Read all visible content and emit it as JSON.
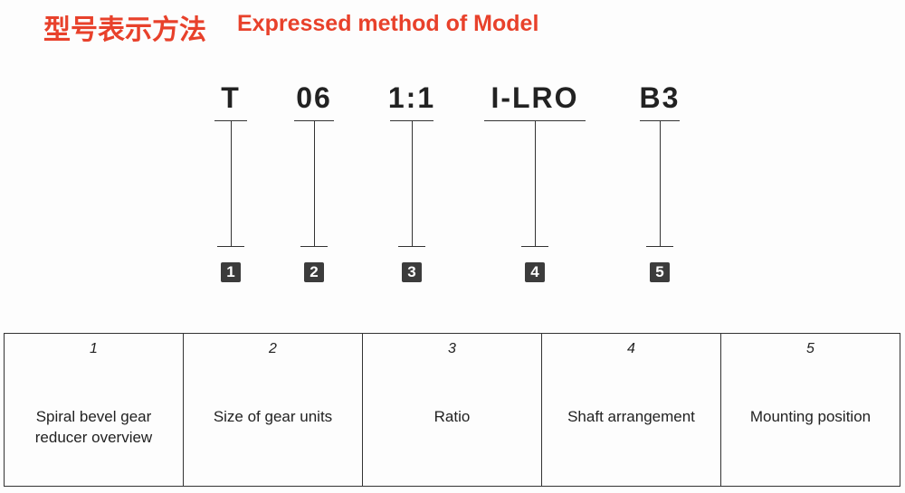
{
  "header": {
    "title_cn": "型号表示方法",
    "title_en": "Expressed method of Model"
  },
  "items": [
    {
      "code": "T",
      "number": "1",
      "description": "Spiral bevel gear reducer overview"
    },
    {
      "code": "06",
      "number": "2",
      "description": "Size of gear units"
    },
    {
      "code": "1:1",
      "number": "3",
      "description": "Ratio"
    },
    {
      "code": "I-LRO",
      "number": "4",
      "description": "Shaft arrangement"
    },
    {
      "code": "B3",
      "number": "5",
      "description": "Mounting position"
    }
  ]
}
